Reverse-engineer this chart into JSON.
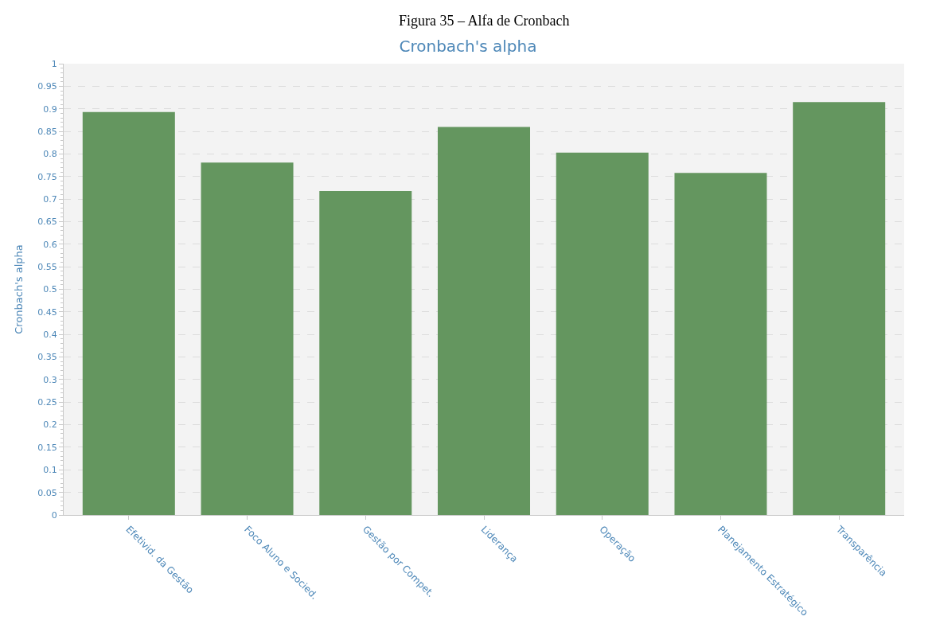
{
  "chart_data": {
    "type": "bar",
    "title": "Cronbach's alpha",
    "ylabel": "Cronbach's alpha",
    "annotations": [
      "Figura 35 – Alfa de Cronbach"
    ],
    "categories": [
      "Efetivid. da Gestão",
      "Foco Aluno e Socied.",
      "Gestão por Compet.",
      "Liderança",
      "Operação",
      "Planejamento Estratégico",
      "Transparência"
    ],
    "values": [
      0.893,
      0.781,
      0.718,
      0.86,
      0.803,
      0.758,
      0.915
    ],
    "color": "#64965f",
    "ylim": [
      0,
      1
    ],
    "yticks": [
      0,
      0.05,
      0.1,
      0.15,
      0.2,
      0.25,
      0.3,
      0.35,
      0.4,
      0.45,
      0.5,
      0.55,
      0.6,
      0.65,
      0.7,
      0.75,
      0.8,
      0.85,
      0.9,
      0.95,
      1
    ],
    "grid": "y",
    "legend": false
  }
}
